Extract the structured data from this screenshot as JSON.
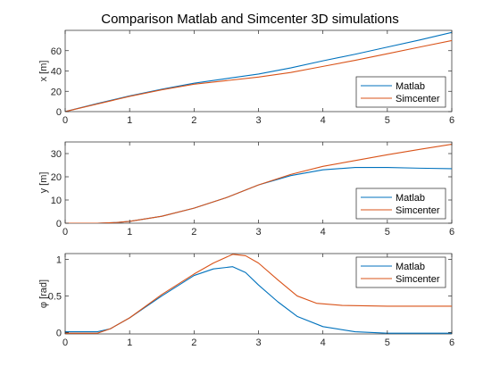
{
  "figure": {
    "title": "Comparison Matlab and Simcenter 3D simulations"
  },
  "colors": {
    "matlab": "#0072BD",
    "simcenter": "#D95319",
    "axis": "#262626",
    "background": "#ffffff"
  },
  "chart_data": [
    {
      "type": "line",
      "ylabel": "x [m]",
      "xlabel": "",
      "xlim": [
        0,
        6
      ],
      "ylim": [
        0,
        80
      ],
      "xticks": [
        0,
        1,
        2,
        3,
        4,
        5,
        6
      ],
      "yticks": [
        0,
        20,
        40,
        60
      ],
      "grid": false,
      "legend": "bottom-right",
      "series": [
        {
          "name": "Matlab",
          "x": [
            0,
            0.5,
            1,
            1.5,
            2,
            2.5,
            3,
            3.5,
            4,
            4.5,
            5,
            5.5,
            6
          ],
          "y": [
            0,
            8,
            15.5,
            22,
            28,
            32.5,
            37,
            43,
            50,
            56.5,
            63.5,
            70.5,
            78
          ]
        },
        {
          "name": "Simcenter",
          "x": [
            0,
            0.5,
            1,
            1.5,
            2,
            2.5,
            3,
            3.5,
            4,
            4.5,
            5,
            5.5,
            6
          ],
          "y": [
            0,
            7.5,
            15,
            21.5,
            27,
            30.5,
            34,
            38.5,
            44.5,
            50.5,
            57,
            63.5,
            70
          ]
        }
      ]
    },
    {
      "type": "line",
      "ylabel": "y [m]",
      "xlabel": "",
      "xlim": [
        0,
        6
      ],
      "ylim": [
        0,
        35
      ],
      "xticks": [
        0,
        1,
        2,
        3,
        4,
        5,
        6
      ],
      "yticks": [
        0,
        10,
        20,
        30
      ],
      "grid": false,
      "legend": "bottom-right",
      "series": [
        {
          "name": "Matlab",
          "x": [
            0,
            0.5,
            0.8,
            1,
            1.5,
            2,
            2.5,
            3,
            3.5,
            4,
            4.5,
            5,
            5.5,
            6
          ],
          "y": [
            0,
            0,
            0.3,
            0.8,
            3,
            6.5,
            11,
            16.5,
            20.5,
            23,
            24,
            24,
            23.7,
            23.5
          ]
        },
        {
          "name": "Simcenter",
          "x": [
            0,
            0.5,
            0.8,
            1,
            1.5,
            2,
            2.5,
            3,
            3.5,
            4,
            4.5,
            5,
            5.5,
            6
          ],
          "y": [
            0,
            0,
            0.3,
            0.8,
            3,
            6.5,
            11,
            16.5,
            21,
            24.5,
            27,
            29.5,
            31.8,
            34
          ]
        }
      ]
    },
    {
      "type": "line",
      "ylabel": "φ [rad]",
      "xlabel": "",
      "xlim": [
        0,
        6
      ],
      "ylim": [
        -0.02,
        1.08
      ],
      "xticks": [
        0,
        1,
        2,
        3,
        4,
        5,
        6
      ],
      "yticks": [
        0,
        0.5,
        1
      ],
      "grid": false,
      "legend": "top-right",
      "series": [
        {
          "name": "Matlab",
          "x": [
            0,
            0.5,
            0.7,
            1,
            1.5,
            2,
            2.3,
            2.6,
            2.8,
            3,
            3.3,
            3.6,
            4,
            4.5,
            5,
            5.5,
            6
          ],
          "y": [
            0.01,
            0.01,
            0.05,
            0.2,
            0.5,
            0.78,
            0.87,
            0.9,
            0.82,
            0.65,
            0.42,
            0.22,
            0.08,
            0.01,
            -0.01,
            -0.01,
            -0.01
          ]
        },
        {
          "name": "Simcenter",
          "x": [
            0,
            0.5,
            0.6,
            0.7,
            1,
            1.5,
            2,
            2.3,
            2.6,
            2.8,
            3,
            3.3,
            3.6,
            3.9,
            4.3,
            5,
            5.5,
            6
          ],
          "y": [
            -0.01,
            -0.01,
            0.02,
            0.05,
            0.2,
            0.52,
            0.8,
            0.95,
            1.07,
            1.05,
            0.95,
            0.72,
            0.5,
            0.4,
            0.37,
            0.36,
            0.36,
            0.36
          ]
        }
      ]
    }
  ]
}
